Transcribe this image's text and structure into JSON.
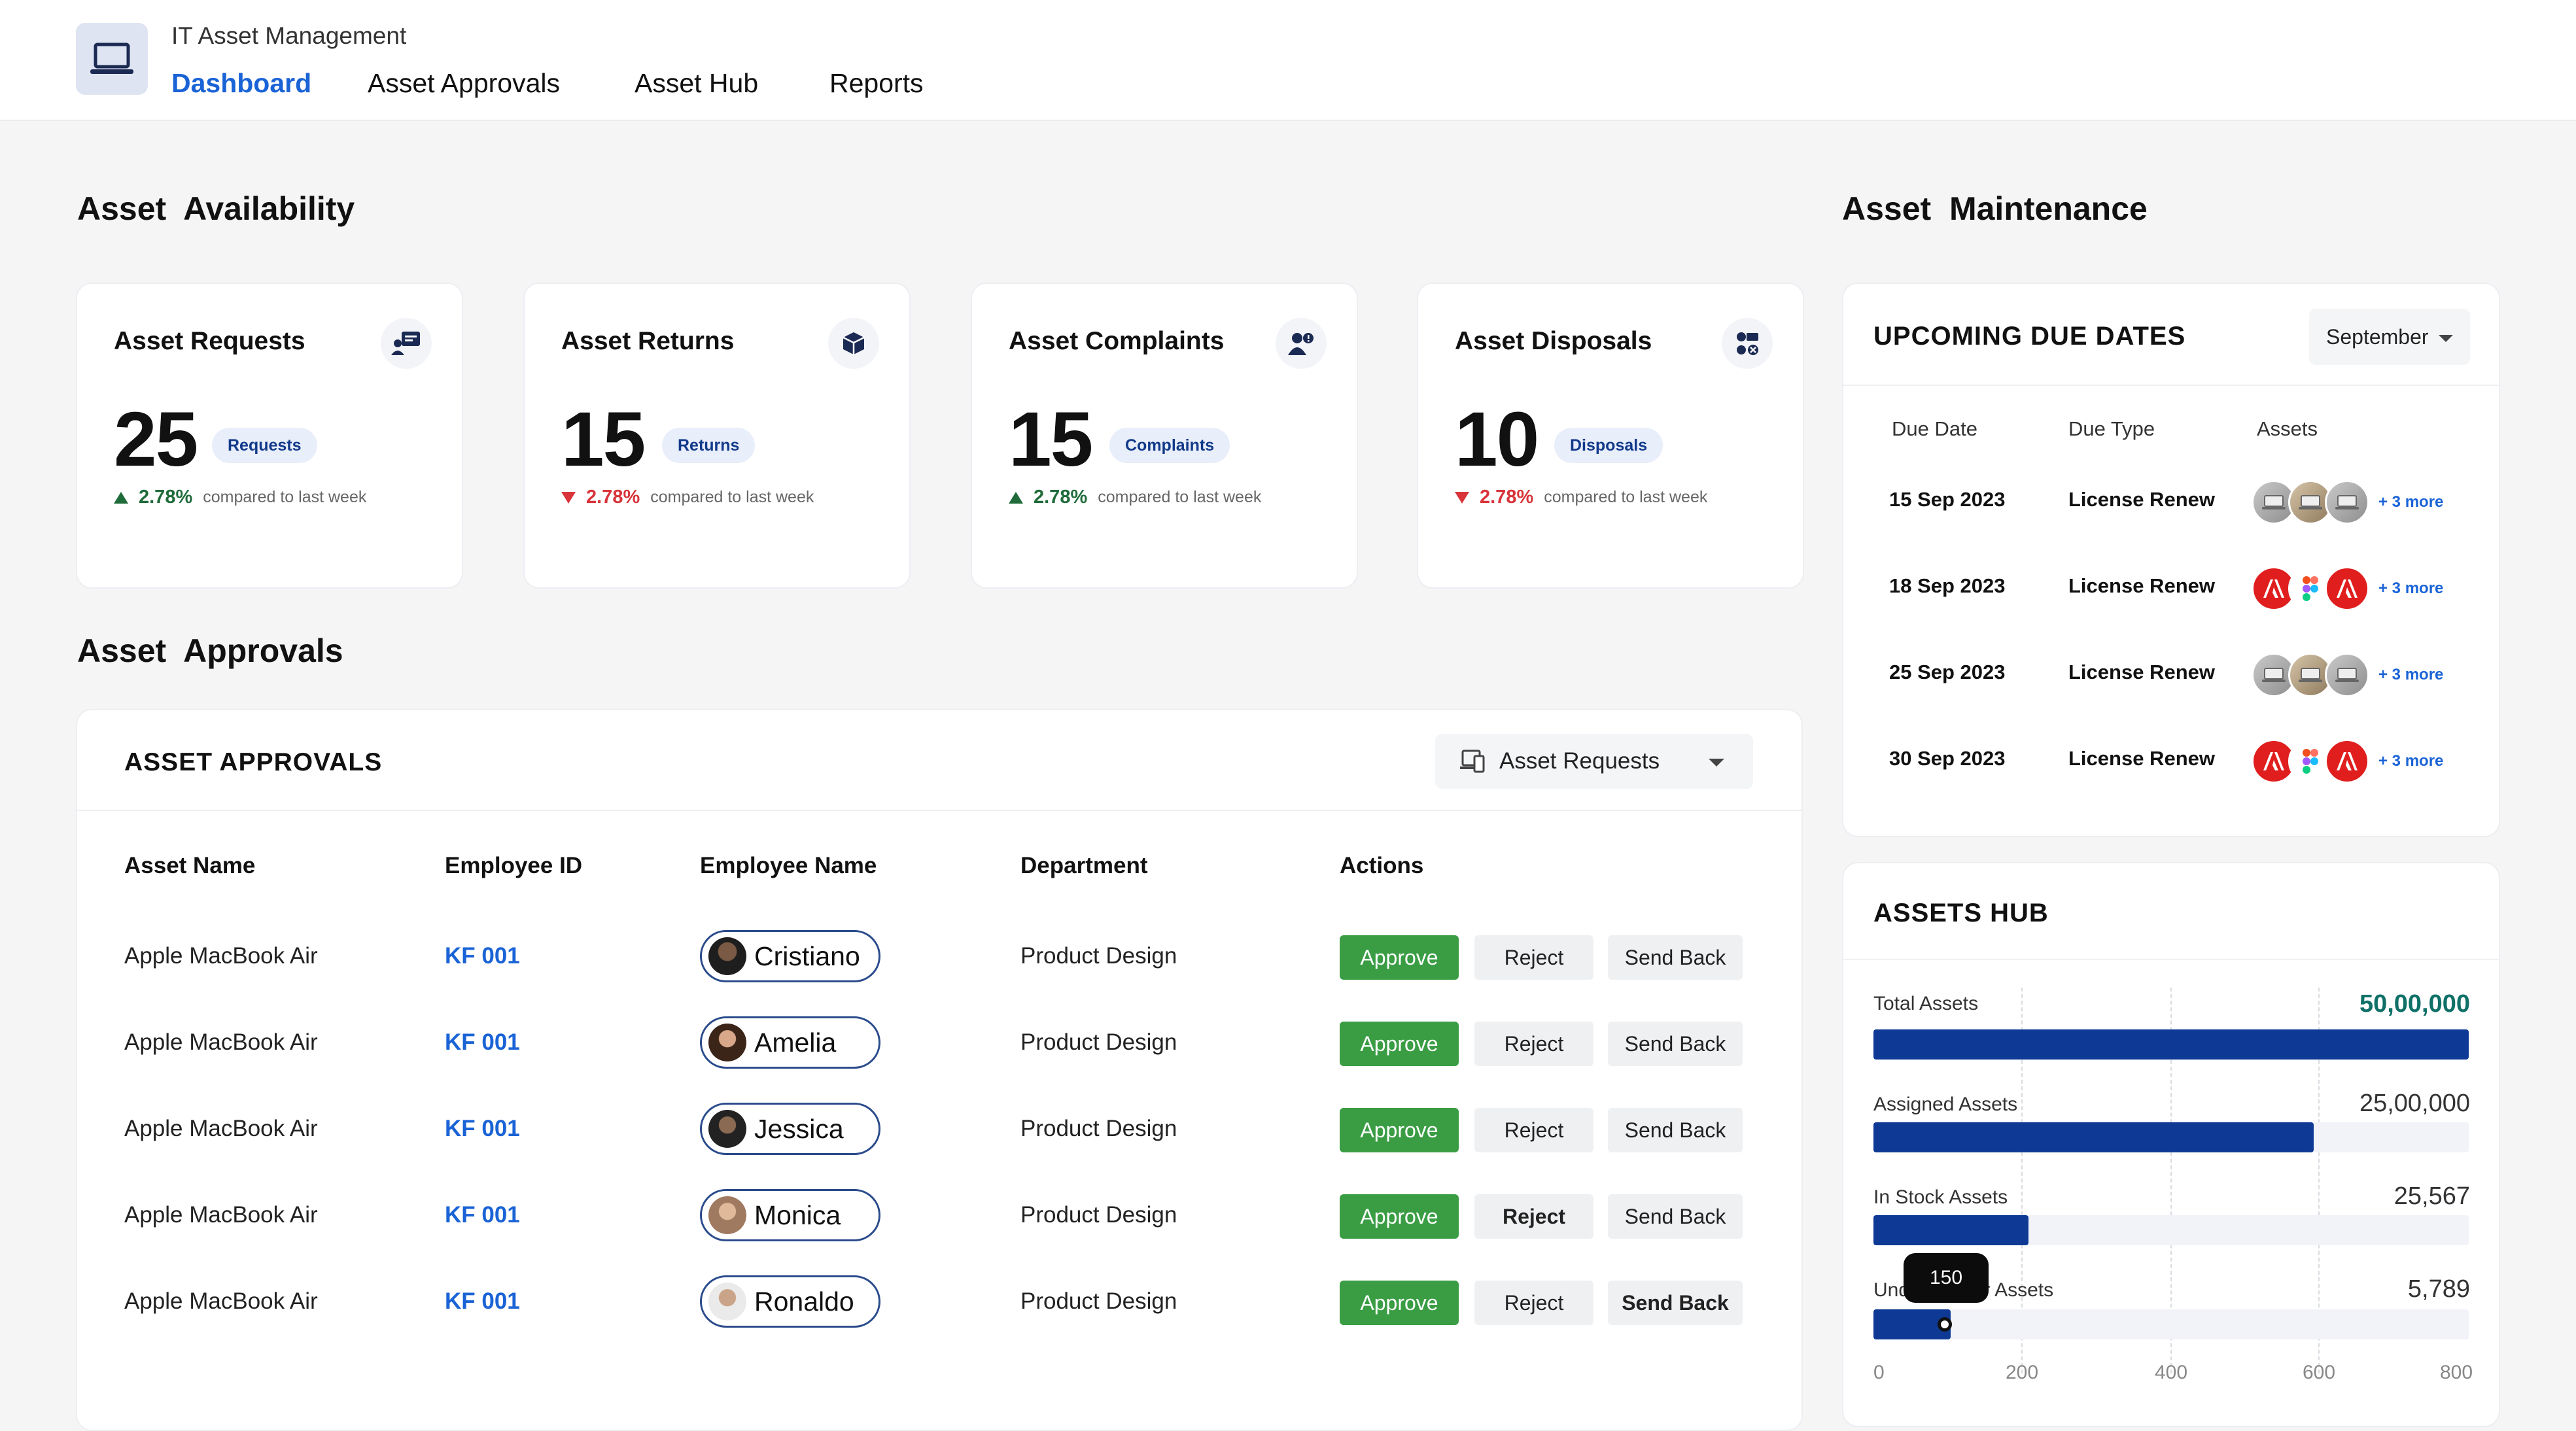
{
  "app": {
    "title": "IT Asset Management",
    "logo_icon": "laptop-icon",
    "nav": [
      "Dashboard",
      "Asset Approvals",
      "Asset Hub",
      "Reports"
    ],
    "active_nav": "Dashboard"
  },
  "availability": {
    "title": "Asset  Availability",
    "cards": [
      {
        "title": "Asset Requests",
        "value": "25",
        "pill": "Requests",
        "trend": "up",
        "pct": "2.78%",
        "compare": "compared to last week",
        "icon": "chat-request-icon"
      },
      {
        "title": "Asset Returns",
        "value": "15",
        "pill": "Returns",
        "trend": "down",
        "pct": "2.78%",
        "compare": "compared to last week",
        "icon": "box-return-icon"
      },
      {
        "title": "Asset Complaints",
        "value": "15",
        "pill": "Complaints",
        "trend": "up",
        "pct": "2.78%",
        "compare": "compared to last week",
        "icon": "user-complaint-icon"
      },
      {
        "title": "Asset Disposals",
        "value": "10",
        "pill": "Disposals",
        "trend": "down",
        "pct": "2.78%",
        "compare": "compared to last week",
        "icon": "dispose-icon"
      }
    ]
  },
  "approvals": {
    "section_title": "Asset  Approvals",
    "card_title": "ASSET APPROVALS",
    "filter": "Asset Requests",
    "columns": [
      "Asset Name",
      "Employee ID",
      "Employee Name",
      "Department",
      "Actions"
    ],
    "rows": [
      {
        "asset": "Apple MacBook Air",
        "emp_id": "KF 001",
        "name": "Cristiano",
        "dept": "Product Design"
      },
      {
        "asset": "Apple MacBook Air",
        "emp_id": "KF 001",
        "name": "Amelia",
        "dept": "Product Design"
      },
      {
        "asset": "Apple MacBook Air",
        "emp_id": "KF 001",
        "name": "Jessica",
        "dept": "Product Design"
      },
      {
        "asset": "Apple MacBook Air",
        "emp_id": "KF 001",
        "name": "Monica",
        "dept": "Product Design"
      },
      {
        "asset": "Apple MacBook Air",
        "emp_id": "KF 001",
        "name": "Ronaldo",
        "dept": "Product Design"
      }
    ],
    "actions": {
      "approve": "Approve",
      "reject": "Reject",
      "send_back": "Send Back"
    }
  },
  "maintenance": {
    "section_title": "Asset  Maintenance",
    "card_title": "UPCOMING DUE DATES",
    "month": "September",
    "columns": [
      "Due Date",
      "Due Type",
      "Assets"
    ],
    "rows": [
      {
        "date": "15 Sep 2023",
        "type": "License Renew",
        "assets": [
          "mac",
          "mac2",
          "mac"
        ],
        "more": "+ 3 more"
      },
      {
        "date": "18 Sep 2023",
        "type": "License Renew",
        "assets": [
          "adobe",
          "figma",
          "adobe"
        ],
        "more": "+ 3 more"
      },
      {
        "date": "25 Sep 2023",
        "type": "License Renew",
        "assets": [
          "mac",
          "mac2",
          "mac"
        ],
        "more": "+ 3 more"
      },
      {
        "date": "30 Sep 2023",
        "type": "License Renew",
        "assets": [
          "adobe",
          "figma",
          "adobe"
        ],
        "more": "+ 3 more"
      }
    ]
  },
  "hub": {
    "title": "ASSETS HUB",
    "bars": [
      {
        "label": "Total Assets",
        "value": "50,00,000",
        "fill": 1.0
      },
      {
        "label": "Assigned Assets",
        "value": "25,00,000",
        "fill": 0.74
      },
      {
        "label": "In Stock Assets",
        "value": "25,567",
        "fill": 0.26
      },
      {
        "label": "Under Repair Assets",
        "value": "5,789",
        "fill": 0.13
      }
    ],
    "ticks": [
      "0",
      "200",
      "400",
      "600",
      "800"
    ],
    "tooltip": "150"
  },
  "colors": {
    "accent": "#1a63d6",
    "approve": "#3a9d44",
    "bar": "#0e3a95",
    "up": "#1f6b3a",
    "down": "#d8343a"
  }
}
